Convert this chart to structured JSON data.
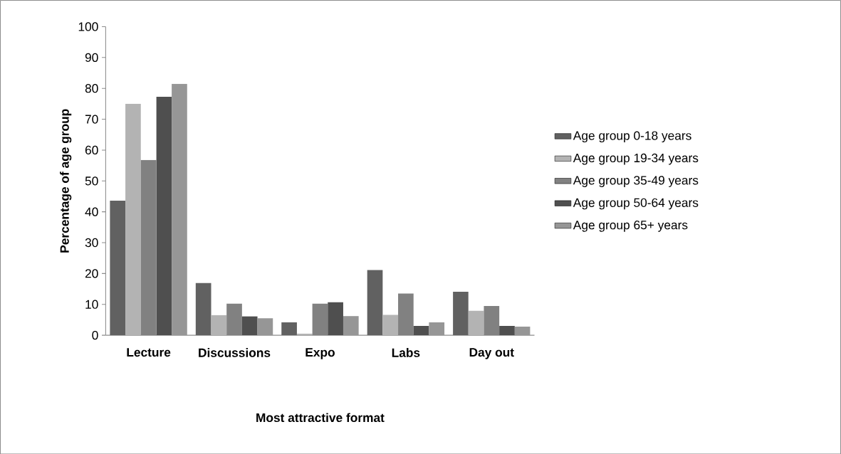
{
  "chart_data": {
    "type": "bar",
    "xlabel": "Most attractive format",
    "ylabel": "Percentage of age group",
    "categories": [
      "Lecture",
      "Discussions",
      "Expo",
      "Labs",
      "Day out"
    ],
    "series": [
      {
        "name": "Age group 0-18 years",
        "color": "#616161",
        "values": [
          43.6,
          16.9,
          4.2,
          21.1,
          14.1
        ]
      },
      {
        "name": "Age group 19-34 years",
        "color": "#b3b3b3",
        "values": [
          75.0,
          6.5,
          0.5,
          6.6,
          7.9
        ]
      },
      {
        "name": "Age group 35-49 years",
        "color": "#818181",
        "values": [
          56.8,
          10.2,
          10.2,
          13.5,
          9.5
        ]
      },
      {
        "name": "Age group 50-64 years",
        "color": "#4f4f4f",
        "values": [
          77.3,
          6.1,
          10.7,
          3.0,
          3.0
        ]
      },
      {
        "name": "Age group 65+ years",
        "color": "#969696",
        "values": [
          81.5,
          5.5,
          6.2,
          4.2,
          2.8
        ]
      }
    ],
    "ylim": [
      0,
      100
    ],
    "yticks": [
      0,
      10,
      20,
      30,
      40,
      50,
      60,
      70,
      80,
      90,
      100
    ],
    "grid": false,
    "legend": "right"
  }
}
